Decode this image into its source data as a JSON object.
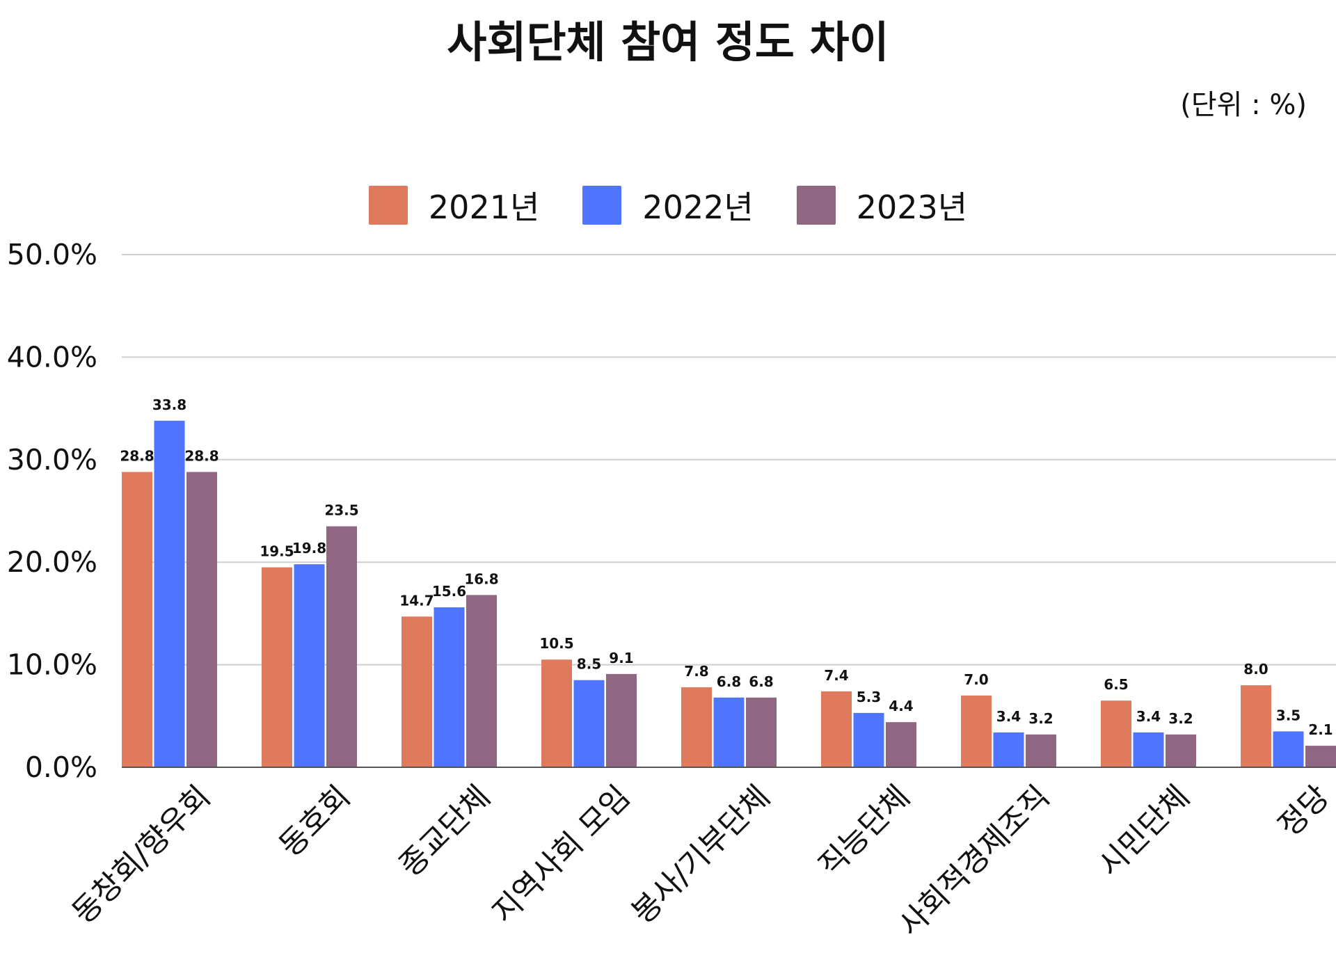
{
  "chart_data": {
    "type": "bar",
    "title": "사회단체 참여 정도 차이",
    "unit_note": "(단위 : %)",
    "categories": [
      "동창회/향우회",
      "동호회",
      "종교단체",
      "지역사회 모임",
      "봉사/기부단체",
      "직능단체",
      "사회적경제조직",
      "시민단체",
      "정당"
    ],
    "series": [
      {
        "name": "2021년",
        "color": "#E07A5F",
        "values": [
          28.8,
          19.5,
          14.7,
          10.5,
          7.8,
          7.4,
          7.0,
          6.5,
          8.0
        ]
      },
      {
        "name": "2022년",
        "color": "#4F74FF",
        "values": [
          33.8,
          19.8,
          15.6,
          8.5,
          6.8,
          5.3,
          3.4,
          3.4,
          3.5
        ]
      },
      {
        "name": "2023년",
        "color": "#8F6783",
        "values": [
          28.8,
          23.5,
          16.8,
          9.1,
          6.8,
          4.4,
          3.2,
          3.2,
          2.1
        ]
      }
    ],
    "ylim": [
      0,
      50
    ],
    "yticks": [
      0,
      10,
      20,
      30,
      40,
      50
    ],
    "ytick_labels": [
      "0.0%",
      "10.0%",
      "20.0%",
      "30.0%",
      "40.0%",
      "50.0%"
    ],
    "grid": true,
    "legend_position": "top-center"
  }
}
